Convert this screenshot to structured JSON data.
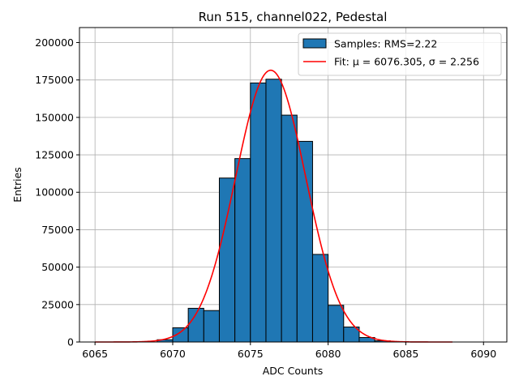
{
  "chart_data": {
    "type": "bar",
    "title": "Run 515, channel022, Pedestal",
    "xlabel": "ADC Counts",
    "ylabel": "Entries",
    "xlim": [
      6064,
      6091.5
    ],
    "ylim": [
      0,
      210000
    ],
    "grid": true,
    "legend_position": "top-right",
    "x_ticks": [
      6065,
      6070,
      6075,
      6080,
      6085,
      6090
    ],
    "y_ticks": [
      0,
      25000,
      50000,
      75000,
      100000,
      125000,
      150000,
      175000,
      200000
    ],
    "series": [
      {
        "name": "Samples: RMS=2.22",
        "type": "histogram",
        "color": "#1f77b4",
        "edge_color": "#000000",
        "bin_edges": [
          6069,
          6070,
          6071,
          6072,
          6073,
          6074,
          6075,
          6076,
          6077,
          6078,
          6079,
          6080,
          6081,
          6082,
          6083,
          6084
        ],
        "counts": [
          1500,
          9500,
          22500,
          21000,
          109500,
          122500,
          173000,
          175500,
          151500,
          134000,
          58500,
          24500,
          10000,
          3000,
          800
        ]
      },
      {
        "name": "Fit: μ = 6076.305, σ = 2.256",
        "type": "line",
        "color": "#ff0000",
        "mu": 6076.305,
        "sigma": 2.256,
        "amplitude": 181500,
        "x_range": [
          6065,
          6088
        ]
      }
    ]
  }
}
